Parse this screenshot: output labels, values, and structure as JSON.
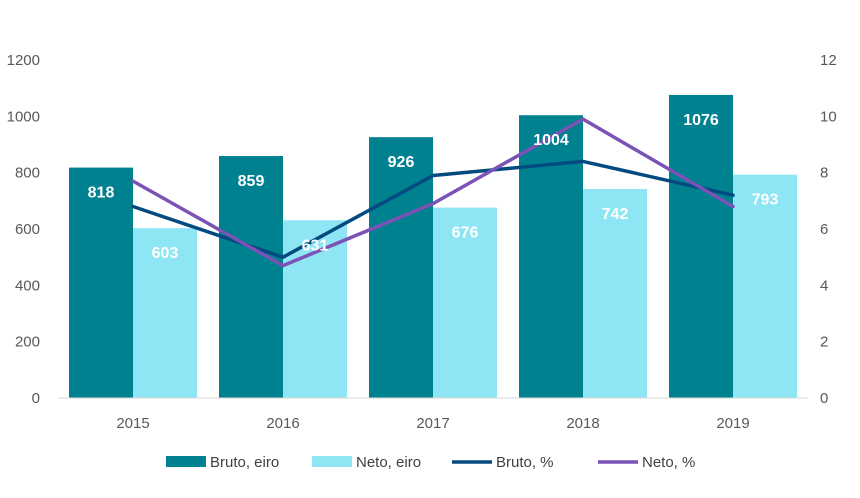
{
  "chart_data": {
    "type": "bar",
    "categories": [
      "2015",
      "2016",
      "2017",
      "2018",
      "2019"
    ],
    "series": [
      {
        "name": "Bruto, eiro",
        "kind": "bar",
        "axis": "left",
        "values": [
          818,
          859,
          926,
          1004,
          1076
        ],
        "color": "#00818F"
      },
      {
        "name": "Neto, eiro",
        "kind": "bar",
        "axis": "left",
        "values": [
          603,
          631,
          676,
          742,
          793
        ],
        "color": "#8EE6F4"
      },
      {
        "name": "Bruto,  %",
        "kind": "line",
        "axis": "right",
        "values": [
          6.8,
          5.0,
          7.9,
          8.4,
          7.2
        ],
        "color": "#034A80"
      },
      {
        "name": "Neto, %",
        "kind": "line",
        "axis": "right",
        "values": [
          7.7,
          4.7,
          6.9,
          9.9,
          6.8
        ],
        "color": "#7B52B5"
      }
    ],
    "y_left": {
      "range": [
        0,
        1200
      ],
      "ticks": [
        "0",
        "200",
        "400",
        "600",
        "800",
        "1000",
        "1200"
      ]
    },
    "y_right": {
      "range": [
        0,
        12
      ],
      "ticks": [
        "0",
        "2",
        "4",
        "6",
        "8",
        "10",
        "12"
      ]
    },
    "grid": false,
    "legend": "bottom",
    "title": "",
    "xlabel": "",
    "ylabel": ""
  }
}
